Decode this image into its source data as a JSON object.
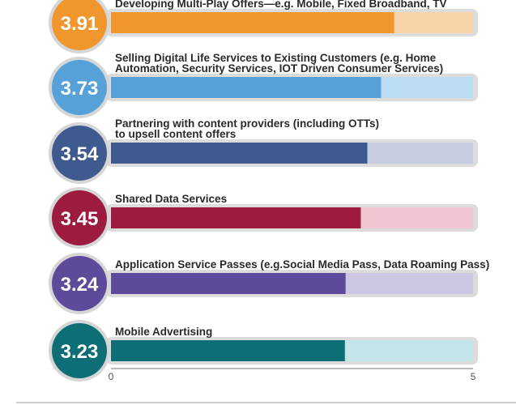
{
  "chart_data": {
    "type": "bar",
    "orientation": "horizontal",
    "categories": [
      "Developing Multi-Play Offers—e.g. Mobile, Fixed Broadband, TV",
      "Selling Digital Life Services to Existing Customers (e.g. Home Automation, Security Services, IOT Driven Consumer Services)",
      "Partnering with content providers (including OTTs) to upsell content offers",
      "Shared Data Services",
      "Application Service Passes (e.g.Social Media Pass, Data Roaming Pass)",
      "Mobile Advertising"
    ],
    "category_lines": [
      [
        "Developing Multi-Play Offers—e.g. Mobile, Fixed Broadband, TV"
      ],
      [
        "Selling Digital Life Services to Existing Customers (e.g. Home",
        "Automation, Security Services, IOT Driven Consumer Services)"
      ],
      [
        "Partnering with content providers (including OTTs)",
        "to upsell content offers"
      ],
      [
        "Shared Data Services"
      ],
      [
        "Application Service Passes (e.g.Social Media Pass, Data Roaming Pass)"
      ],
      [
        "Mobile Advertising"
      ]
    ],
    "values": [
      3.91,
      3.73,
      3.54,
      3.45,
      3.24,
      3.23
    ],
    "value_labels": [
      "3.91",
      "3.73",
      "3.54",
      "3.45",
      "3.24",
      "3.23"
    ],
    "xlim": [
      0,
      5
    ],
    "xticks": [
      "0",
      "5"
    ],
    "colors": [
      "#f0962d",
      "#56a2d8",
      "#3f5a8f",
      "#9e1b40",
      "#5e4a9a",
      "#0e6e75"
    ],
    "track_colors": [
      "#f7d3a8",
      "#bcdcf1",
      "#c6cde0",
      "#f1c6d3",
      "#cdc6e3",
      "#c3e5e9"
    ],
    "title": "",
    "xlabel": "",
    "ylabel": ""
  }
}
